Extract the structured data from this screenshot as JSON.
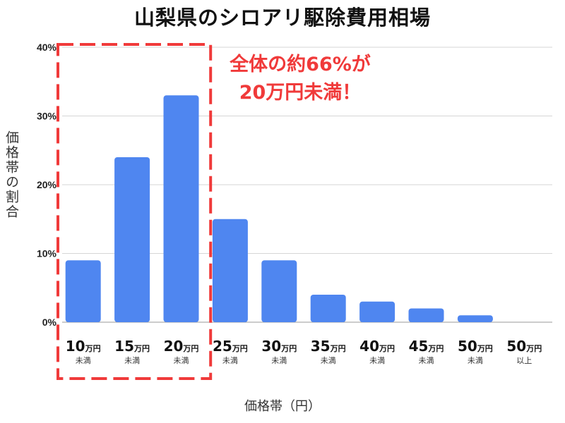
{
  "chart_data": {
    "type": "bar",
    "title": "山梨県のシロアリ駆除費用相場",
    "ylabel": "価格帯の割合",
    "xlabel": "価格帯（円）",
    "ylim": [
      0,
      40
    ],
    "yticks": [
      "0%",
      "10%",
      "20%",
      "30%",
      "40%"
    ],
    "categories": [
      {
        "num": "10",
        "unit": "万円",
        "sub": "未満"
      },
      {
        "num": "15",
        "unit": "万円",
        "sub": "未満"
      },
      {
        "num": "20",
        "unit": "万円",
        "sub": "未満"
      },
      {
        "num": "25",
        "unit": "万円",
        "sub": "未満"
      },
      {
        "num": "30",
        "unit": "万円",
        "sub": "未満"
      },
      {
        "num": "35",
        "unit": "万円",
        "sub": "未満"
      },
      {
        "num": "40",
        "unit": "万円",
        "sub": "未満"
      },
      {
        "num": "45",
        "unit": "万円",
        "sub": "未満"
      },
      {
        "num": "50",
        "unit": "万円",
        "sub": "未満"
      },
      {
        "num": "50",
        "unit": "万円",
        "sub": "以上"
      }
    ],
    "values": [
      9,
      24,
      33,
      15,
      9,
      4,
      3,
      2,
      1,
      0
    ],
    "bar_color": "#4f86f0",
    "grid": true,
    "annotation": {
      "line1": "全体の約66%が",
      "line2": "20万円未満！",
      "color": "#f03a3a"
    },
    "highlight_categories": 3
  }
}
